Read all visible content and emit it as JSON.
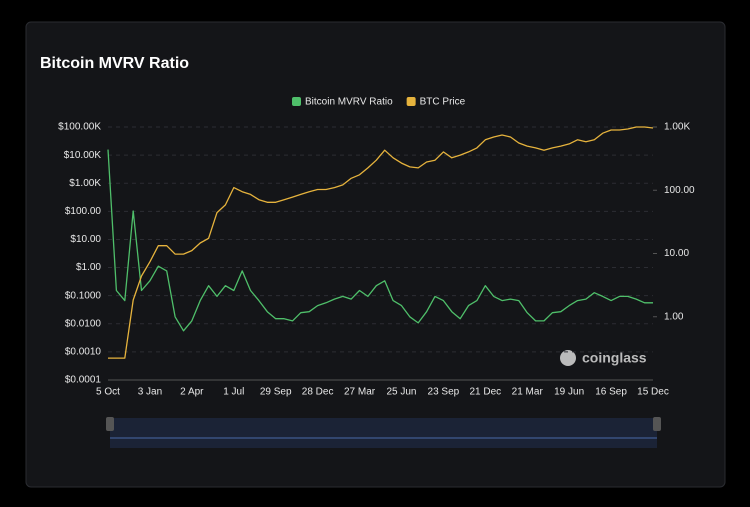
{
  "chart_data": {
    "type": "line",
    "title": "Bitcoin MVRV Ratio",
    "watermark": "coinglass",
    "categories": [
      "5 Oct",
      null,
      null,
      null,
      null,
      "3 Jan",
      null,
      null,
      null,
      null,
      "2 Apr",
      null,
      null,
      null,
      null,
      "1 Jul",
      null,
      null,
      null,
      null,
      "29 Sep",
      null,
      null,
      null,
      null,
      "28 Dec",
      null,
      null,
      null,
      null,
      "27 Mar",
      null,
      null,
      null,
      null,
      "25 Jun",
      null,
      null,
      null,
      null,
      "23 Sep",
      null,
      null,
      null,
      null,
      "21 Dec",
      null,
      null,
      null,
      null,
      "21 Mar",
      null,
      null,
      null,
      null,
      "19 Jun",
      null,
      null,
      null,
      null,
      "16 Sep",
      null,
      null,
      null,
      null,
      "15 Dec"
    ],
    "series": [
      {
        "name": "Bitcoin MVRV Ratio",
        "color": "#4fbf6a",
        "axis": "y2",
        "values": [
          440,
          2.6,
          1.8,
          47,
          2.6,
          3.7,
          6.3,
          5.3,
          1.0,
          0.6,
          0.86,
          1.8,
          3.1,
          2.1,
          3.1,
          2.6,
          5.3,
          2.6,
          1.8,
          1.2,
          0.93,
          0.93,
          0.86,
          1.16,
          1.2,
          1.5,
          1.66,
          1.9,
          2.1,
          1.9,
          2.6,
          2.1,
          3.1,
          3.7,
          1.8,
          1.5,
          1.0,
          0.8,
          1.2,
          2.1,
          1.8,
          1.2,
          0.93,
          1.5,
          1.8,
          3.1,
          2.1,
          1.8,
          1.9,
          1.8,
          1.16,
          0.86,
          0.86,
          1.16,
          1.2,
          1.5,
          1.8,
          1.9,
          2.4,
          2.1,
          1.8,
          2.1,
          2.1,
          1.9,
          1.66,
          1.66
        ]
      },
      {
        "name": "BTC Price",
        "color": "#e6b33d",
        "values": [
          0.0006,
          0.0006,
          0.0006,
          0.07,
          0.5,
          1.6,
          6,
          6,
          3,
          3,
          4,
          7.5,
          11,
          90,
          170,
          700,
          500,
          400,
          260,
          210,
          210,
          260,
          320,
          400,
          500,
          600,
          600,
          700,
          870,
          1500,
          2000,
          3500,
          6600,
          15000,
          8000,
          5200,
          3800,
          3500,
          5700,
          6600,
          13000,
          8000,
          10000,
          13000,
          18000,
          35000,
          44000,
          52000,
          44000,
          27000,
          21000,
          18000,
          15000,
          18000,
          21000,
          25000,
          35000,
          30000,
          35000,
          60000,
          78000,
          78000,
          85000,
          100000,
          100000,
          92000
        ]
      }
    ],
    "log_scale": true,
    "grid": true,
    "legend": "top",
    "ylim": [
      0.0001,
      100000
    ],
    "yticks": [
      {
        "value": 0.0001,
        "label": "$0.0001"
      },
      {
        "value": 0.001,
        "label": "$0.0010"
      },
      {
        "value": 0.01,
        "label": "$0.0100"
      },
      {
        "value": 0.1,
        "label": "$0.1000"
      },
      {
        "value": 1,
        "label": "$1.00"
      },
      {
        "value": 10,
        "label": "$10.00"
      },
      {
        "value": 100,
        "label": "$100.00"
      },
      {
        "value": 1000,
        "label": "$1.00K"
      },
      {
        "value": 10000,
        "label": "$10.00K"
      },
      {
        "value": 100000,
        "label": "$100.00K"
      }
    ],
    "y2lim": [
      0.1,
      1000
    ],
    "y2ticks": [
      {
        "value": 1,
        "label": "1.00"
      },
      {
        "value": 10,
        "label": "10.00"
      },
      {
        "value": 100,
        "label": "100.00"
      },
      {
        "value": 1000,
        "label": "1.00K"
      }
    ]
  }
}
